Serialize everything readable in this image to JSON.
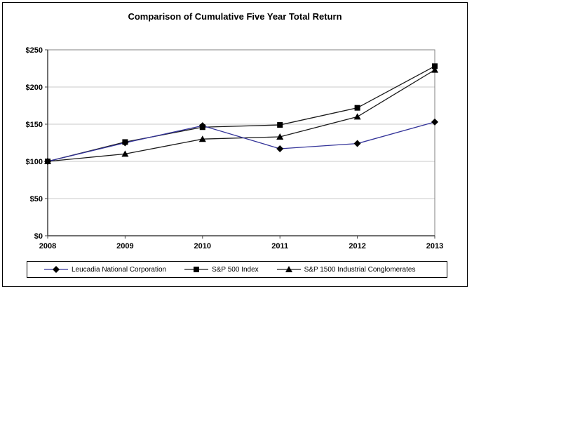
{
  "chart_data": {
    "type": "line",
    "title": "Comparison of Cumulative Five Year Total Return",
    "x": [
      "2008",
      "2009",
      "2010",
      "2011",
      "2012",
      "2013"
    ],
    "xlabel": "",
    "ylabel": "",
    "ylim": [
      0,
      250
    ],
    "ytick_step": 50,
    "ytick_labels": [
      "$0",
      "$50",
      "$100",
      "$150",
      "$200",
      "$250"
    ],
    "grid": "horizontal",
    "legend_position": "bottom",
    "series": [
      {
        "name": "Leucadia National Corporation",
        "marker": "diamond",
        "line_color": "#333399",
        "marker_color": "#000000",
        "values": [
          100,
          125,
          148,
          117,
          124,
          153
        ]
      },
      {
        "name": "S&P 500 Index",
        "marker": "square",
        "line_color": "#1a1a1a",
        "marker_color": "#000000",
        "values": [
          100,
          126,
          146,
          149,
          172,
          228
        ]
      },
      {
        "name": "S&P 1500 Industrial Conglomerates",
        "marker": "triangle",
        "line_color": "#1a1a1a",
        "marker_color": "#000000",
        "values": [
          100,
          110,
          130,
          133,
          160,
          223
        ]
      }
    ],
    "colors": {
      "grid": "#c9c9c9",
      "axis": "#404040",
      "plot_border": "#808080",
      "text": "#000000",
      "background": "#ffffff"
    }
  }
}
